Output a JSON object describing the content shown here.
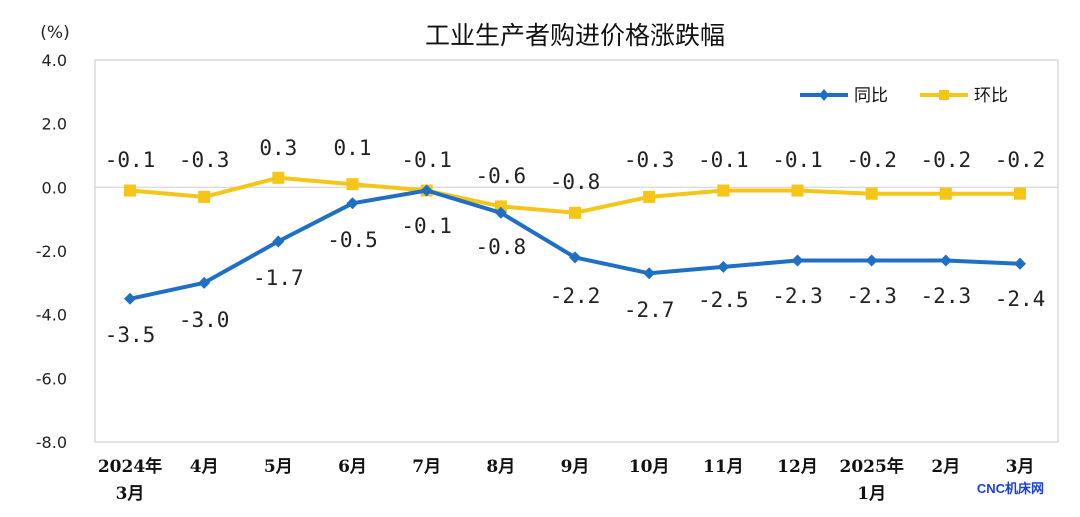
{
  "chart_data": {
    "type": "line",
    "title": "工业生产者购进价格涨跌幅",
    "unit": "(%)",
    "ylim": [
      -8.0,
      4.0
    ],
    "yticks": [
      "4.0",
      "2.0",
      "0.0",
      "-2.0",
      "-4.0",
      "-6.0",
      "-8.0"
    ],
    "ytick_values": [
      4,
      2,
      0,
      -2,
      -4,
      -6,
      -8
    ],
    "categories": [
      [
        "2024年",
        "3月"
      ],
      [
        "4月"
      ],
      [
        "5月"
      ],
      [
        "6月"
      ],
      [
        "7月"
      ],
      [
        "8月"
      ],
      [
        "9月"
      ],
      [
        "10月"
      ],
      [
        "11月"
      ],
      [
        "12月"
      ],
      [
        "2025年",
        "1月"
      ],
      [
        "2月"
      ],
      [
        "3月"
      ]
    ],
    "grid": false,
    "legend": "top-right",
    "series": [
      {
        "name": "同比",
        "color": "#1f6fc5",
        "marker": "diamond",
        "values": [
          -3.5,
          -3.0,
          -1.7,
          -0.5,
          -0.1,
          -0.8,
          -2.2,
          -2.7,
          -2.5,
          -2.3,
          -2.3,
          -2.3,
          -2.4
        ],
        "labels": [
          "-3.5",
          "-3.0",
          "-1.7",
          "-0.5",
          "-0.1",
          "-0.8",
          "-2.2",
          "-2.7",
          "-2.5",
          "-2.3",
          "-2.3",
          "-2.3",
          "-2.4"
        ]
      },
      {
        "name": "环比",
        "color": "#f5c518",
        "marker": "square",
        "values": [
          -0.1,
          -0.3,
          0.3,
          0.1,
          -0.1,
          -0.6,
          -0.8,
          -0.3,
          -0.1,
          -0.1,
          -0.2,
          -0.2,
          -0.2
        ],
        "labels": [
          "-0.1",
          "-0.3",
          "0.3",
          "0.1",
          "-0.1",
          "-0.6",
          "-0.8",
          "-0.3",
          "-0.1",
          "-0.1",
          "-0.2",
          "-0.2",
          "-0.2"
        ]
      }
    ]
  },
  "watermark": "CNC机床网"
}
